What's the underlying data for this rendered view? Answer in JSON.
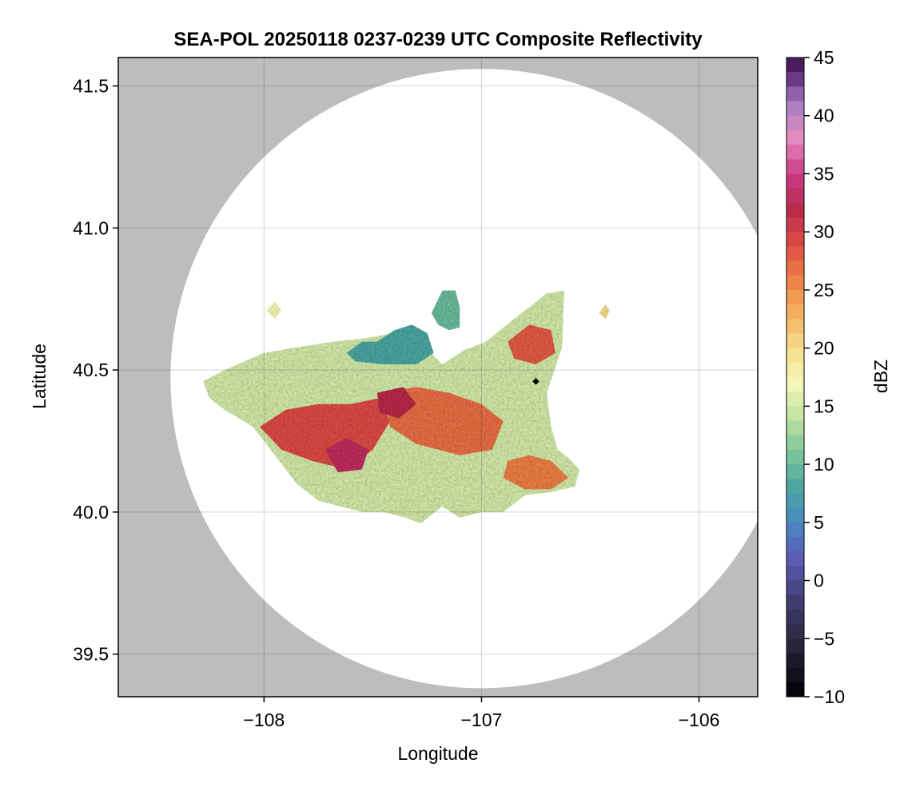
{
  "chart_data": {
    "type": "heatmap",
    "title": "SEA-POL 20250118 0237-0239 UTC Composite Reflectivity",
    "xlabel": "Longitude",
    "ylabel": "Latitude",
    "xlim": [
      -108.67,
      -105.73
    ],
    "ylim": [
      39.35,
      41.6
    ],
    "xticks": [
      -108,
      -107,
      -106
    ],
    "xtick_labels": [
      "−108",
      "−107",
      "−106"
    ],
    "yticks": [
      39.5,
      40.0,
      40.5,
      41.0,
      41.5
    ],
    "ytick_labels": [
      "39.5",
      "40.0",
      "40.5",
      "41.0",
      "41.5"
    ],
    "grid": true,
    "background_color": "#bdbdbd",
    "radar_coverage": {
      "center": [
        -107.0,
        40.47
      ],
      "radius_lat_deg": 1.09,
      "radius_lon_deg": 1.43,
      "fill_color": "#ffffff"
    },
    "radar_site_marker": [
      -106.75,
      40.46
    ],
    "colorbar": {
      "label": "dBZ",
      "range": [
        -10,
        45
      ],
      "ticks": [
        -10,
        -5,
        0,
        5,
        10,
        15,
        20,
        25,
        30,
        35,
        40,
        45
      ],
      "tick_labels": [
        "−10",
        "−5",
        "0",
        "5",
        "10",
        "15",
        "20",
        "25",
        "30",
        "35",
        "40",
        "45"
      ],
      "colormap_stops": [
        {
          "value": -10,
          "color": "#000004"
        },
        {
          "value": -5,
          "color": "#2c2a40"
        },
        {
          "value": -2,
          "color": "#3f3b6e"
        },
        {
          "value": 2,
          "color": "#5c5db4"
        },
        {
          "value": 5,
          "color": "#4a88c0"
        },
        {
          "value": 8,
          "color": "#4ba6a0"
        },
        {
          "value": 11,
          "color": "#7bc69a"
        },
        {
          "value": 14,
          "color": "#c1e2a0"
        },
        {
          "value": 17,
          "color": "#f4f7b8"
        },
        {
          "value": 20,
          "color": "#f7dc8c"
        },
        {
          "value": 23,
          "color": "#f3b060"
        },
        {
          "value": 26,
          "color": "#ed7f45"
        },
        {
          "value": 29,
          "color": "#dc4b45"
        },
        {
          "value": 32,
          "color": "#b82a4a"
        },
        {
          "value": 35,
          "color": "#cc3a85"
        },
        {
          "value": 38,
          "color": "#e68cc0"
        },
        {
          "value": 41,
          "color": "#a77ec2"
        },
        {
          "value": 43,
          "color": "#6e3b8a"
        },
        {
          "value": 45,
          "color": "#3b0f4a"
        }
      ]
    },
    "echo_regions": [
      {
        "name": "main-storm-outline",
        "dbz": 15,
        "polygon": [
          [
            -108.28,
            40.46
          ],
          [
            -108.18,
            40.5
          ],
          [
            -108.0,
            40.56
          ],
          [
            -107.85,
            40.58
          ],
          [
            -107.68,
            40.6
          ],
          [
            -107.55,
            40.61
          ],
          [
            -107.4,
            40.63
          ],
          [
            -107.3,
            40.6
          ],
          [
            -107.22,
            40.55
          ],
          [
            -107.18,
            40.52
          ],
          [
            -107.08,
            40.57
          ],
          [
            -106.98,
            40.6
          ],
          [
            -106.85,
            40.68
          ],
          [
            -106.7,
            40.77
          ],
          [
            -106.62,
            40.78
          ],
          [
            -106.63,
            40.58
          ],
          [
            -106.7,
            40.42
          ],
          [
            -106.68,
            40.3
          ],
          [
            -106.65,
            40.22
          ],
          [
            -106.6,
            40.19
          ],
          [
            -106.55,
            40.15
          ],
          [
            -106.57,
            40.09
          ],
          [
            -106.68,
            40.07
          ],
          [
            -106.8,
            40.06
          ],
          [
            -106.9,
            40.0
          ],
          [
            -107.0,
            40.0
          ],
          [
            -107.1,
            39.98
          ],
          [
            -107.18,
            40.02
          ],
          [
            -107.28,
            39.96
          ],
          [
            -107.35,
            39.98
          ],
          [
            -107.45,
            40.0
          ],
          [
            -107.55,
            40.0
          ],
          [
            -107.65,
            40.02
          ],
          [
            -107.75,
            40.04
          ],
          [
            -107.85,
            40.1
          ],
          [
            -107.95,
            40.2
          ],
          [
            -108.05,
            40.3
          ],
          [
            -108.18,
            40.36
          ],
          [
            -108.25,
            40.4
          ]
        ]
      },
      {
        "name": "northwest-lobe",
        "dbz": 8,
        "polygon": [
          [
            -107.62,
            40.56
          ],
          [
            -107.55,
            40.6
          ],
          [
            -107.48,
            40.6
          ],
          [
            -107.4,
            40.64
          ],
          [
            -107.32,
            40.66
          ],
          [
            -107.25,
            40.63
          ],
          [
            -107.22,
            40.56
          ],
          [
            -107.3,
            40.52
          ],
          [
            -107.45,
            40.52
          ],
          [
            -107.58,
            40.53
          ]
        ]
      },
      {
        "name": "north-cells",
        "dbz": 10,
        "polygon": [
          [
            -107.23,
            40.7
          ],
          [
            -107.18,
            40.78
          ],
          [
            -107.12,
            40.78
          ],
          [
            -107.1,
            40.72
          ],
          [
            -107.1,
            40.65
          ],
          [
            -107.15,
            40.64
          ],
          [
            -107.2,
            40.66
          ]
        ]
      },
      {
        "name": "east-isolated-cell",
        "dbz": 20,
        "polygon": [
          [
            -106.46,
            40.7
          ],
          [
            -106.43,
            40.73
          ],
          [
            -106.41,
            40.71
          ],
          [
            -106.43,
            40.68
          ]
        ]
      },
      {
        "name": "west-isolated-cell",
        "dbz": 17,
        "polygon": [
          [
            -107.99,
            40.71
          ],
          [
            -107.95,
            40.74
          ],
          [
            -107.92,
            40.71
          ],
          [
            -107.95,
            40.68
          ]
        ]
      },
      {
        "name": "core-west",
        "dbz": 29,
        "polygon": [
          [
            -108.02,
            40.3
          ],
          [
            -107.9,
            40.36
          ],
          [
            -107.75,
            40.38
          ],
          [
            -107.6,
            40.38
          ],
          [
            -107.48,
            40.4
          ],
          [
            -107.42,
            40.32
          ],
          [
            -107.5,
            40.22
          ],
          [
            -107.62,
            40.15
          ],
          [
            -107.78,
            40.18
          ],
          [
            -107.92,
            40.22
          ]
        ]
      },
      {
        "name": "core-center",
        "dbz": 27,
        "polygon": [
          [
            -107.45,
            40.42
          ],
          [
            -107.3,
            40.44
          ],
          [
            -107.15,
            40.42
          ],
          [
            -107.0,
            40.38
          ],
          [
            -106.9,
            40.32
          ],
          [
            -106.95,
            40.22
          ],
          [
            -107.1,
            40.2
          ],
          [
            -107.3,
            40.24
          ],
          [
            -107.42,
            40.3
          ]
        ]
      },
      {
        "name": "core-northeast",
        "dbz": 28,
        "polygon": [
          [
            -106.88,
            40.6
          ],
          [
            -106.78,
            40.66
          ],
          [
            -106.68,
            40.64
          ],
          [
            -106.66,
            40.56
          ],
          [
            -106.75,
            40.52
          ],
          [
            -106.85,
            40.54
          ]
        ]
      },
      {
        "name": "core-southeast",
        "dbz": 26,
        "polygon": [
          [
            -106.88,
            40.18
          ],
          [
            -106.78,
            40.2
          ],
          [
            -106.68,
            40.18
          ],
          [
            -106.6,
            40.12
          ],
          [
            -106.68,
            40.08
          ],
          [
            -106.8,
            40.08
          ],
          [
            -106.9,
            40.12
          ]
        ]
      },
      {
        "name": "max-core-west",
        "dbz": 33,
        "polygon": [
          [
            -107.72,
            40.22
          ],
          [
            -107.62,
            40.26
          ],
          [
            -107.52,
            40.22
          ],
          [
            -107.55,
            40.15
          ],
          [
            -107.66,
            40.14
          ]
        ]
      },
      {
        "name": "max-core-center",
        "dbz": 32,
        "polygon": [
          [
            -107.48,
            40.42
          ],
          [
            -107.36,
            40.44
          ],
          [
            -107.3,
            40.38
          ],
          [
            -107.38,
            40.33
          ],
          [
            -107.47,
            40.35
          ]
        ]
      },
      {
        "name": "south-light-band",
        "dbz": 15,
        "polygon": [
          [
            -107.35,
            40.1
          ],
          [
            -107.2,
            40.12
          ],
          [
            -107.05,
            40.08
          ],
          [
            -107.1,
            40.02
          ],
          [
            -107.25,
            40.03
          ],
          [
            -107.35,
            40.04
          ]
        ]
      }
    ]
  }
}
